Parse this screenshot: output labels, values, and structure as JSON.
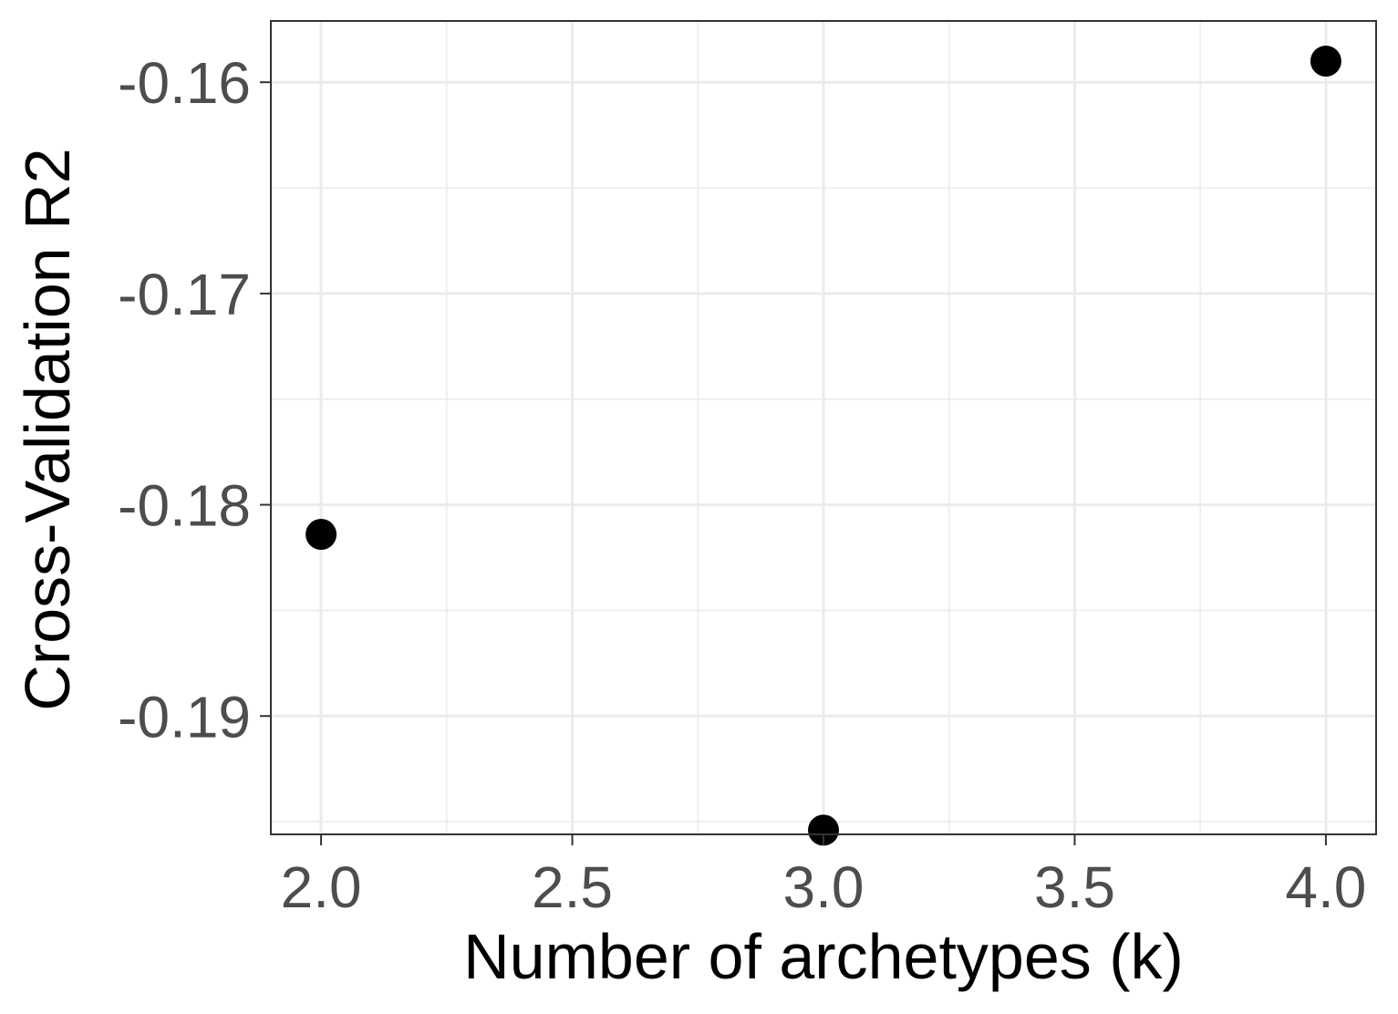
{
  "chart_data": {
    "type": "scatter",
    "xlabel": "Number of archetypes (k)",
    "ylabel": "Cross-Validation R2",
    "xlim": [
      1.9,
      4.1
    ],
    "ylim": [
      -0.1956,
      -0.1571
    ],
    "x_ticks": [
      2.0,
      2.5,
      3.0,
      3.5,
      4.0
    ],
    "x_tick_labels": [
      "2.0",
      "2.5",
      "3.0",
      "3.5",
      "4.0"
    ],
    "y_ticks": [
      -0.19,
      -0.18,
      -0.17,
      -0.16
    ],
    "y_tick_labels": [
      "-0.19",
      "-0.18",
      "-0.17",
      "-0.16"
    ],
    "grid": true,
    "series": [
      {
        "x": [
          2,
          3,
          4
        ],
        "y": [
          -0.1814,
          -0.1954,
          -0.159
        ]
      }
    ],
    "colors": {
      "point": "#000000",
      "grid": "#ebebeb",
      "panel_border": "#333333",
      "tick_text": "#4d4d4d"
    }
  }
}
